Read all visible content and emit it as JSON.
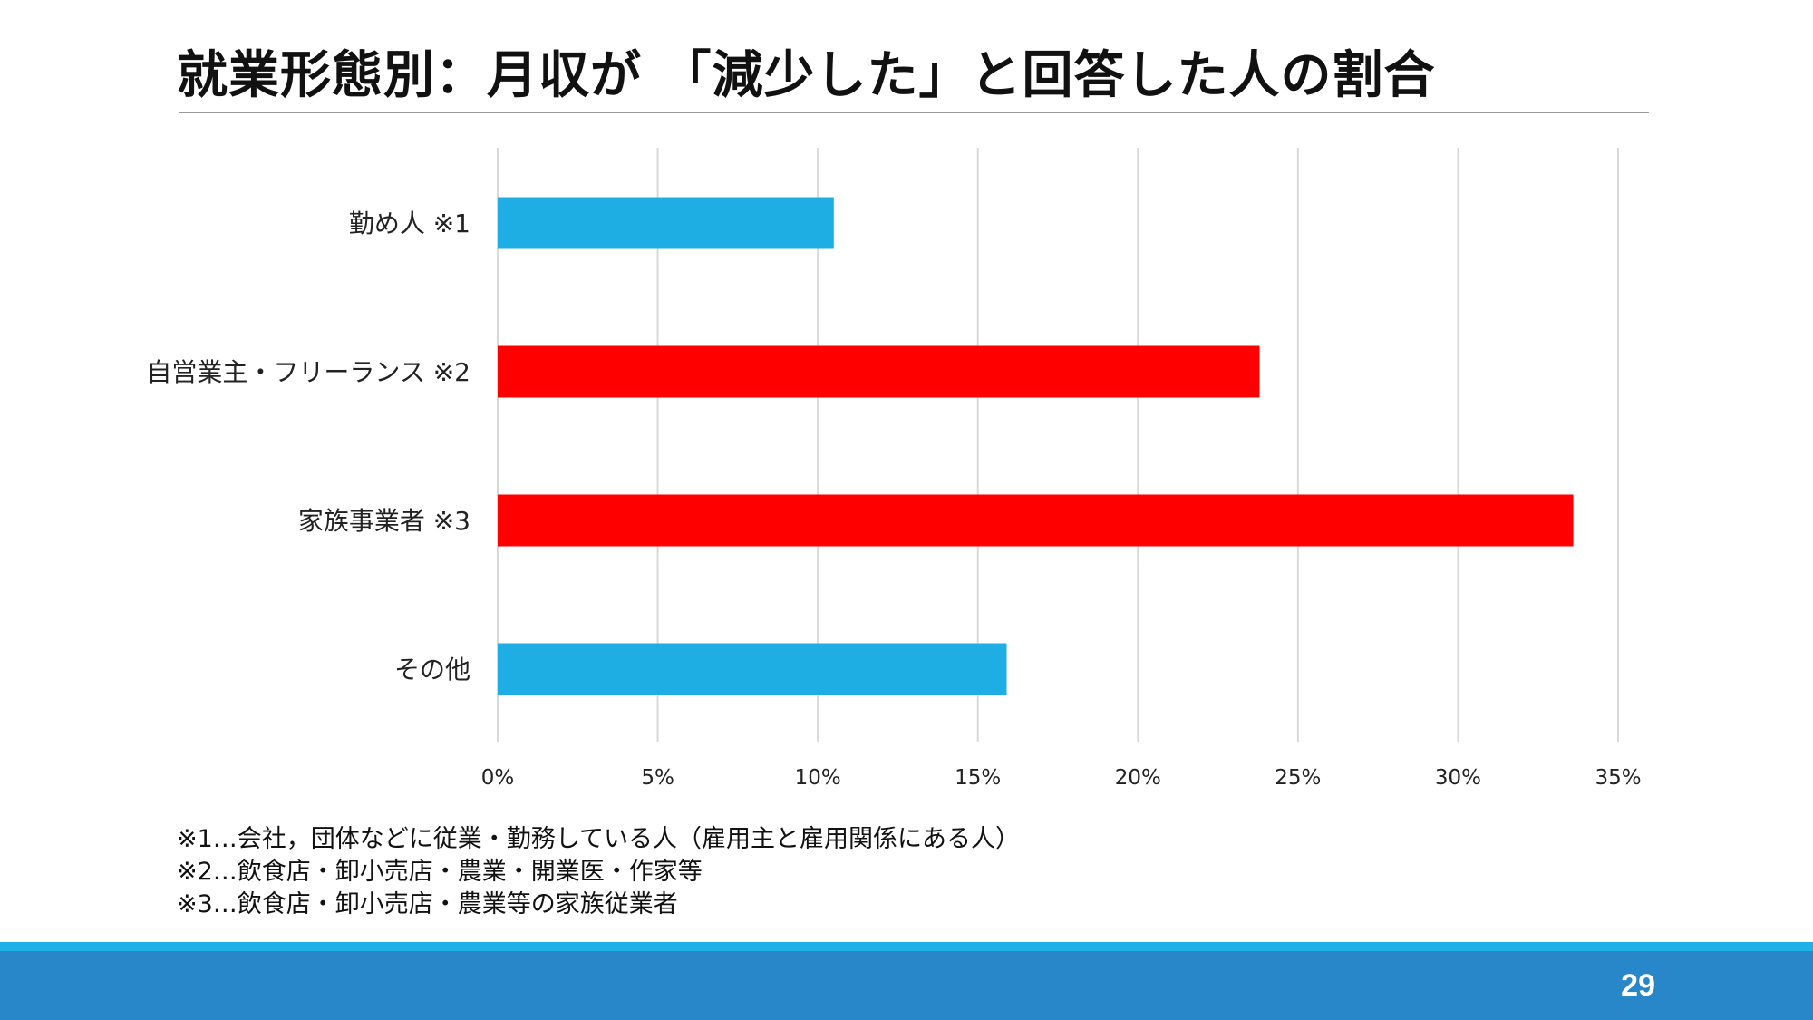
{
  "slide": {
    "title": "就業形態別：月収が 「減少した」と回答した人の割合",
    "page_number": "29",
    "notes": [
      "※1…会社，団体などに従業・勤務している人（雇用主と雇用関係にある人）",
      "※2…飲食店・卸小売店・農業・開業医・作家等",
      "※3…飲食店・卸小売店・農業等の家族従業者"
    ]
  },
  "colors": {
    "footer_bar": "#2787c9",
    "footer_stripe": "#1eb0e6"
  },
  "chart_data": {
    "type": "bar",
    "orientation": "horizontal",
    "categories": [
      "勤め人 ※1",
      "自営業主・フリーランス ※2",
      "家族事業者  ※3",
      "その他"
    ],
    "values": [
      0.105,
      0.238,
      0.336,
      0.159
    ],
    "bar_colors": [
      "#1eaee4",
      "#ff0000",
      "#ff0000",
      "#1eaee4"
    ],
    "xlim": [
      0,
      0.35
    ],
    "xticks": [
      0,
      0.05,
      0.1,
      0.15,
      0.2,
      0.25,
      0.3,
      0.35
    ],
    "xtick_labels": [
      "0%",
      "5%",
      "10%",
      "15%",
      "20%",
      "25%",
      "30%",
      "35%"
    ],
    "grid": "vertical",
    "grid_color": "#d9d9d9",
    "title": "",
    "xlabel": "",
    "ylabel": ""
  }
}
